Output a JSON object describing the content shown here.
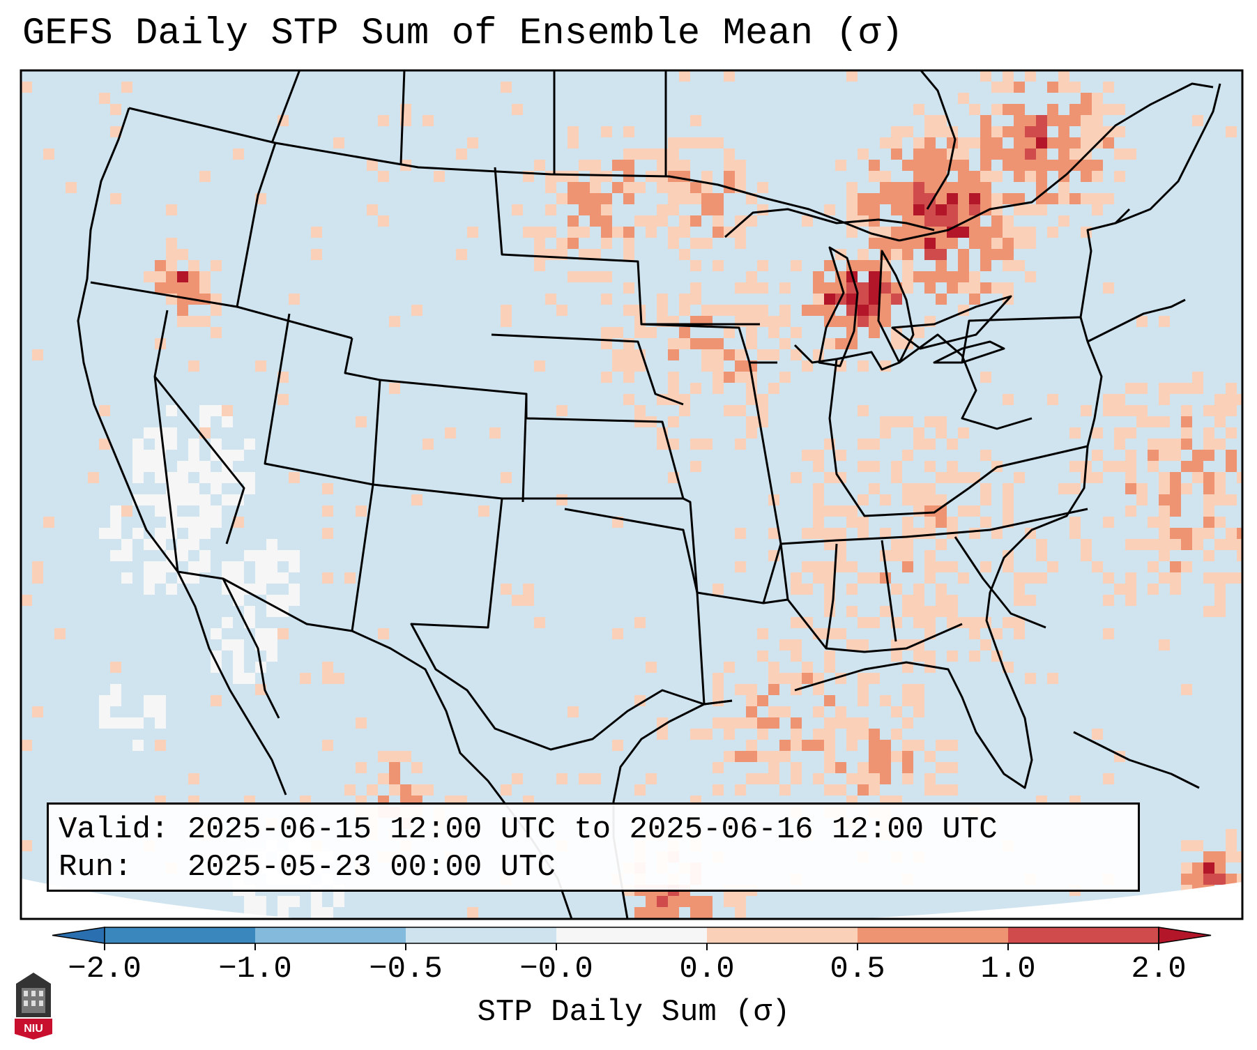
{
  "title": "GEFS Daily STP Sum of Ensemble Mean (σ)",
  "validity": {
    "valid_line": "Valid: 2025-06-15 12:00 UTC to 2025-06-16 12:00 UTC",
    "run_line": "Run:   2025-05-23 00:00 UTC"
  },
  "colorbar": {
    "label": "STP Daily Sum (σ)",
    "ticks": [
      "−2.0",
      "−1.0",
      "−0.5",
      "−0.0",
      "0.0",
      "0.5",
      "1.0",
      "2.0"
    ],
    "bin_colors": [
      "#3a87be",
      "#84bbdc",
      "#cfe3ef",
      "#f6f6f6",
      "#fbd0b8",
      "#ee9472",
      "#d04b4b"
    ],
    "under_color": "#2a6fb0",
    "over_color": "#b31529"
  },
  "map": {
    "ocean_color": "#d0e4f0",
    "land_color": "#d0e4f0",
    "border_color": "#000000"
  },
  "logo": {
    "text": "NIU",
    "color": "#c8102e"
  }
}
